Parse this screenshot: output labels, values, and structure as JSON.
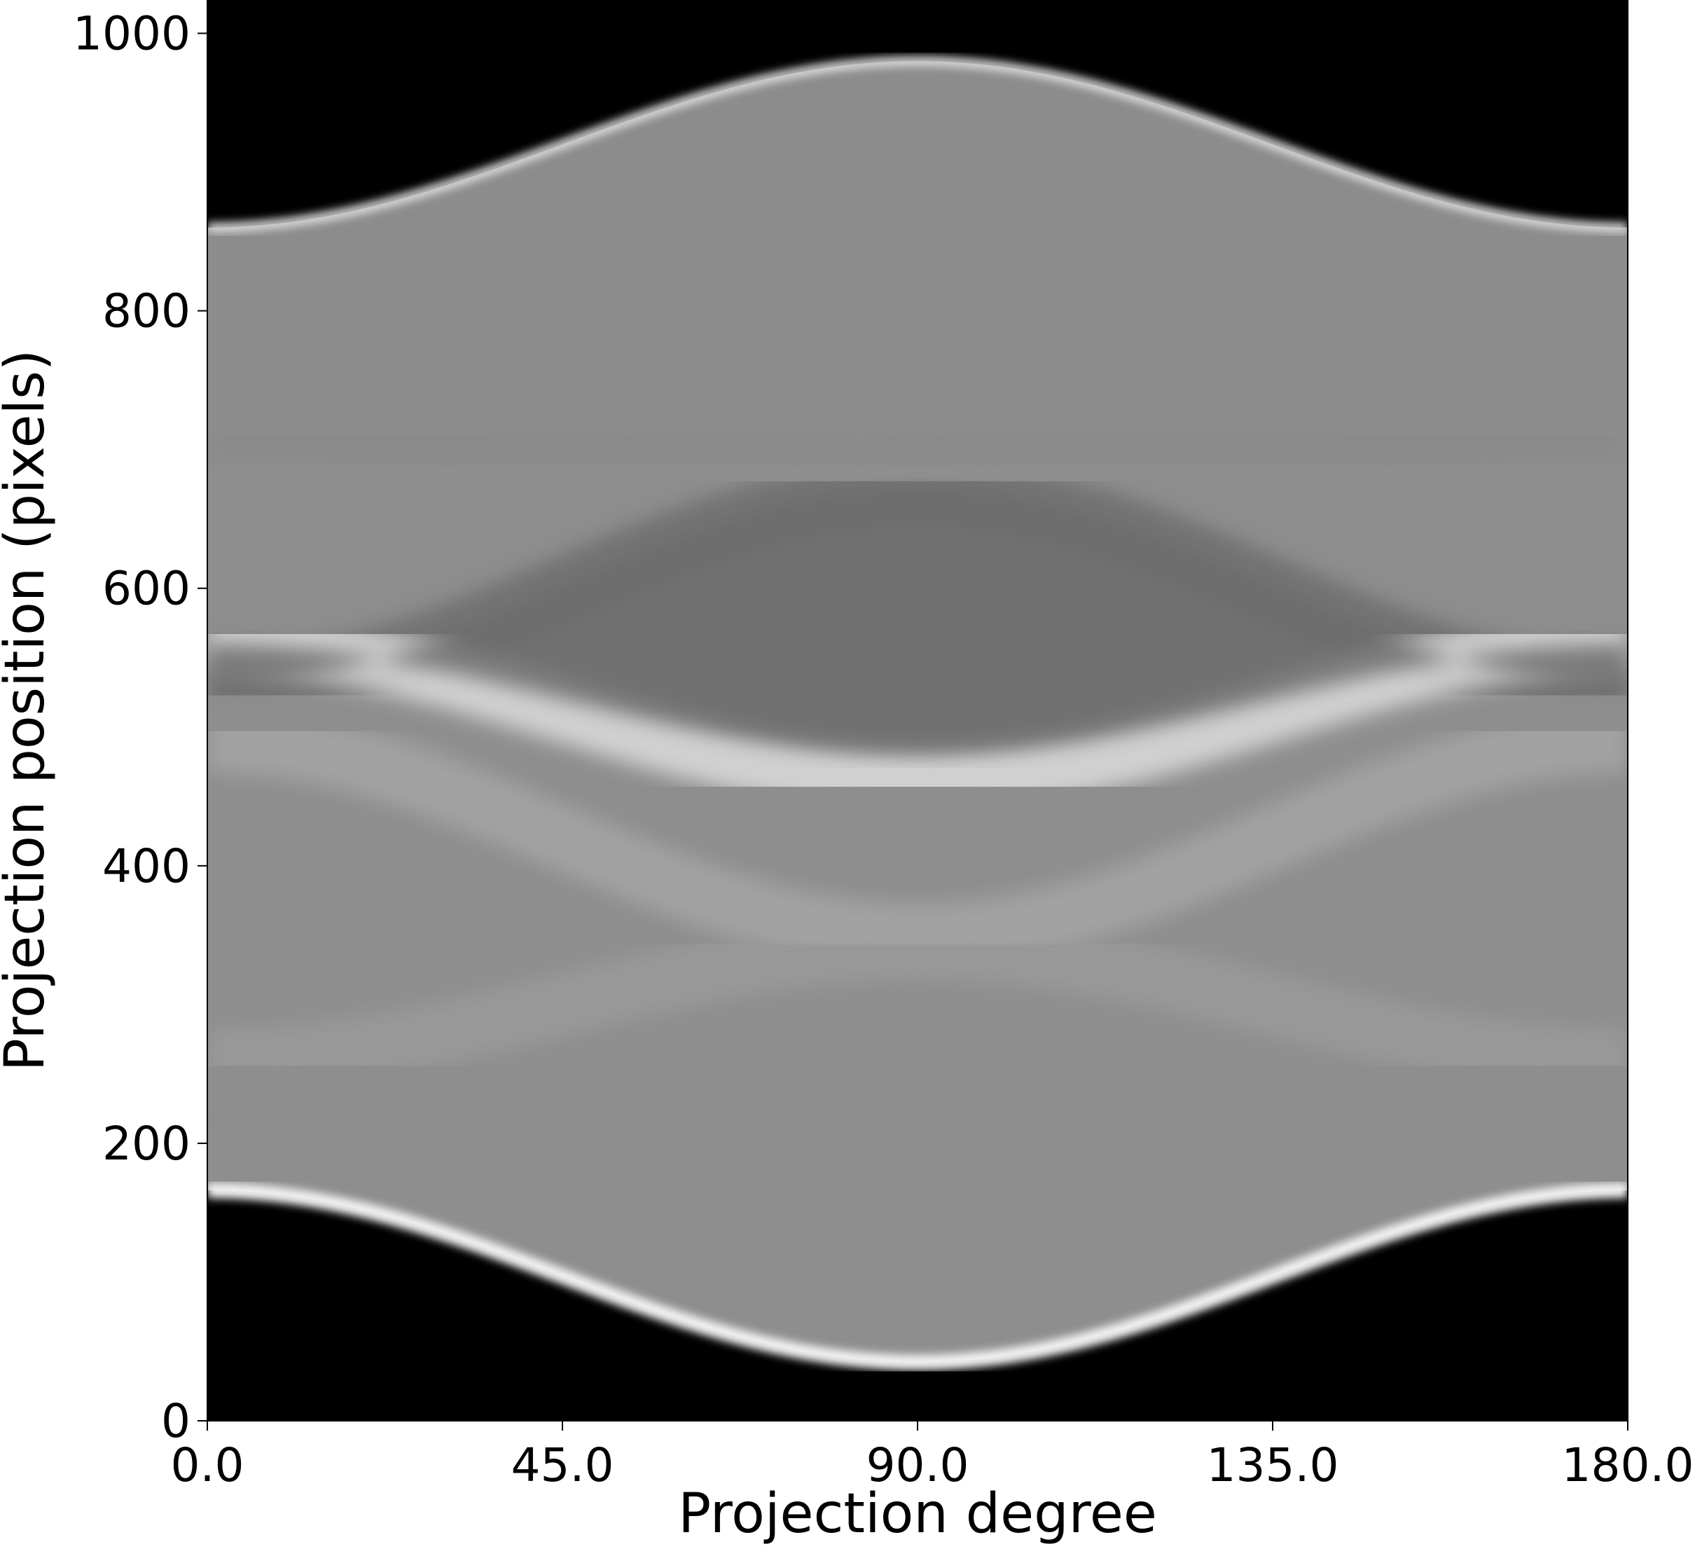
{
  "chart_data": {
    "type": "heatmap",
    "title": "",
    "xlabel": "Projection degree",
    "ylabel": "Projection position (pixels)",
    "xlim": [
      0.0,
      180.0
    ],
    "ylim": [
      0,
      1024
    ],
    "x_ticks": [
      0.0,
      45.0,
      90.0,
      135.0,
      180.0
    ],
    "x_tick_labels": [
      "0.0",
      "45.0",
      "90.0",
      "135.0",
      "180.0"
    ],
    "y_ticks": [
      0,
      200,
      400,
      600,
      800,
      1000
    ],
    "y_tick_labels": [
      "0",
      "200",
      "400",
      "600",
      "800",
      "1000"
    ],
    "colormap": "gray",
    "grid": false,
    "background_color": "#000000",
    "sinogram": {
      "description_of_values": "bands are sinusoids y = center + amplitude*cos(2*degree)",
      "outer_boundary_top": {
        "center": 920,
        "amplitude": -60
      },
      "outer_boundary_bottom": {
        "center": 104,
        "amplitude": 62
      },
      "internal_edges": [
        {
          "center": 700,
          "amplitude": 10,
          "shade": "#8a8a8a"
        },
        {
          "center": 600,
          "amplitude": -70,
          "shade": "#6a6a6a"
        },
        {
          "center": 512,
          "amplitude": 50,
          "shade": "#e6e6e6"
        },
        {
          "center": 420,
          "amplitude": 70,
          "shade": "#a9a9a9"
        },
        {
          "center": 300,
          "amplitude": -40,
          "shade": "#9c9c9c"
        },
        {
          "center": 230,
          "amplitude": 20,
          "shade": "#8f8f8f"
        }
      ]
    }
  }
}
